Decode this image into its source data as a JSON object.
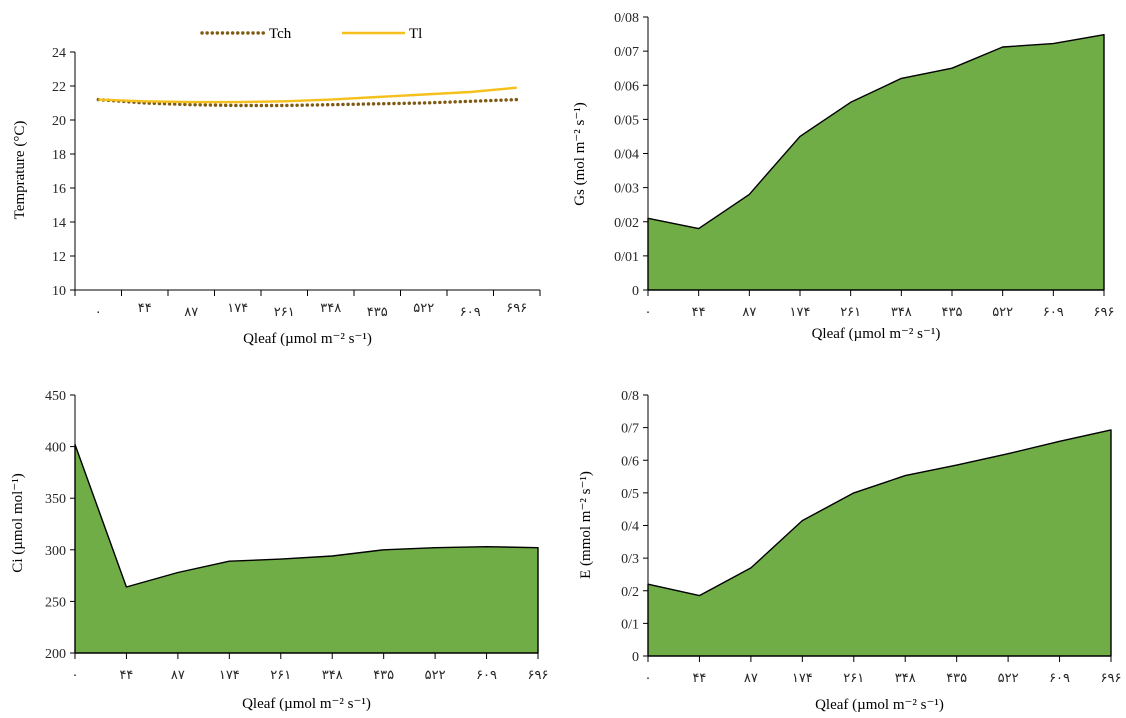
{
  "colors": {
    "tch": "#7f5a12",
    "tl": "#f5c01b",
    "area_fill": "#70ad47",
    "area_stroke": "#000000",
    "axis": "#000000"
  },
  "chart_data": [
    {
      "id": "temp",
      "type": "line",
      "categories": [
        "۰",
        "۴۴",
        "۸۷",
        "۱۷۴",
        "۲۶۱",
        "۳۴۸",
        "۴۳۵",
        "۵۲۲",
        "۶۰۹",
        "۶۹۶"
      ],
      "series": [
        {
          "name": "Tch",
          "values": [
            21.2,
            21.0,
            20.9,
            20.85,
            20.85,
            20.9,
            20.95,
            21.0,
            21.1,
            21.2
          ]
        },
        {
          "name": "Tl",
          "values": [
            21.2,
            21.1,
            21.05,
            21.05,
            21.1,
            21.2,
            21.35,
            21.5,
            21.65,
            21.9
          ]
        }
      ],
      "ylim": [
        10,
        24
      ],
      "yticks": [
        "10",
        "12",
        "14",
        "16",
        "18",
        "20",
        "22",
        "24"
      ],
      "xlabel": "Qleaf (µmol m⁻² s⁻¹)",
      "ylabel": "Temprature (°C)",
      "legend_position": "top"
    },
    {
      "id": "gs",
      "type": "area",
      "categories": [
        "۰",
        "۴۴",
        "۸۷",
        "۱۷۴",
        "۲۶۱",
        "۳۴۸",
        "۴۳۵",
        "۵۲۲",
        "۶۰۹",
        "۶۹۶"
      ],
      "values": [
        0.021,
        0.018,
        0.028,
        0.045,
        0.055,
        0.062,
        0.065,
        0.0712,
        0.0722,
        0.0748
      ],
      "ylim": [
        0,
        0.08
      ],
      "yticks": [
        "0",
        "0/01",
        "0/02",
        "0/03",
        "0/04",
        "0/05",
        "0/06",
        "0/07",
        "0/08"
      ],
      "xlabel": "Qleaf (µmol m⁻² s⁻¹)",
      "ylabel": "Gs (mol m⁻² s⁻¹)"
    },
    {
      "id": "ci",
      "type": "area",
      "categories": [
        "۰",
        "۴۴",
        "۸۷",
        "۱۷۴",
        "۲۶۱",
        "۳۴۸",
        "۴۳۵",
        "۵۲۲",
        "۶۰۹",
        "۶۹۶"
      ],
      "values": [
        402,
        264,
        278,
        289,
        291,
        294,
        300,
        302,
        303,
        302
      ],
      "ylim": [
        200,
        450
      ],
      "yticks": [
        "200",
        "250",
        "300",
        "350",
        "400",
        "450"
      ],
      "xlabel": "Qleaf (µmol m⁻² s⁻¹)",
      "ylabel": "Ci (µmol mol⁻¹)"
    },
    {
      "id": "e",
      "type": "area",
      "categories": [
        "۰",
        "۴۴",
        "۸۷",
        "۱۷۴",
        "۲۶۱",
        "۳۴۸",
        "۴۳۵",
        "۵۲۲",
        "۶۰۹",
        "۶۹۶"
      ],
      "values": [
        0.22,
        0.185,
        0.27,
        0.415,
        0.5,
        0.553,
        0.585,
        0.62,
        0.658,
        0.693
      ],
      "ylim": [
        0,
        0.8
      ],
      "yticks": [
        "0",
        "0/1",
        "0/2",
        "0/3",
        "0/4",
        "0/5",
        "0/6",
        "0/7",
        "0/8"
      ],
      "xlabel": "Qleaf (µmol m⁻² s⁻¹)",
      "ylabel": "E (mmol m⁻² s⁻¹)"
    }
  ]
}
